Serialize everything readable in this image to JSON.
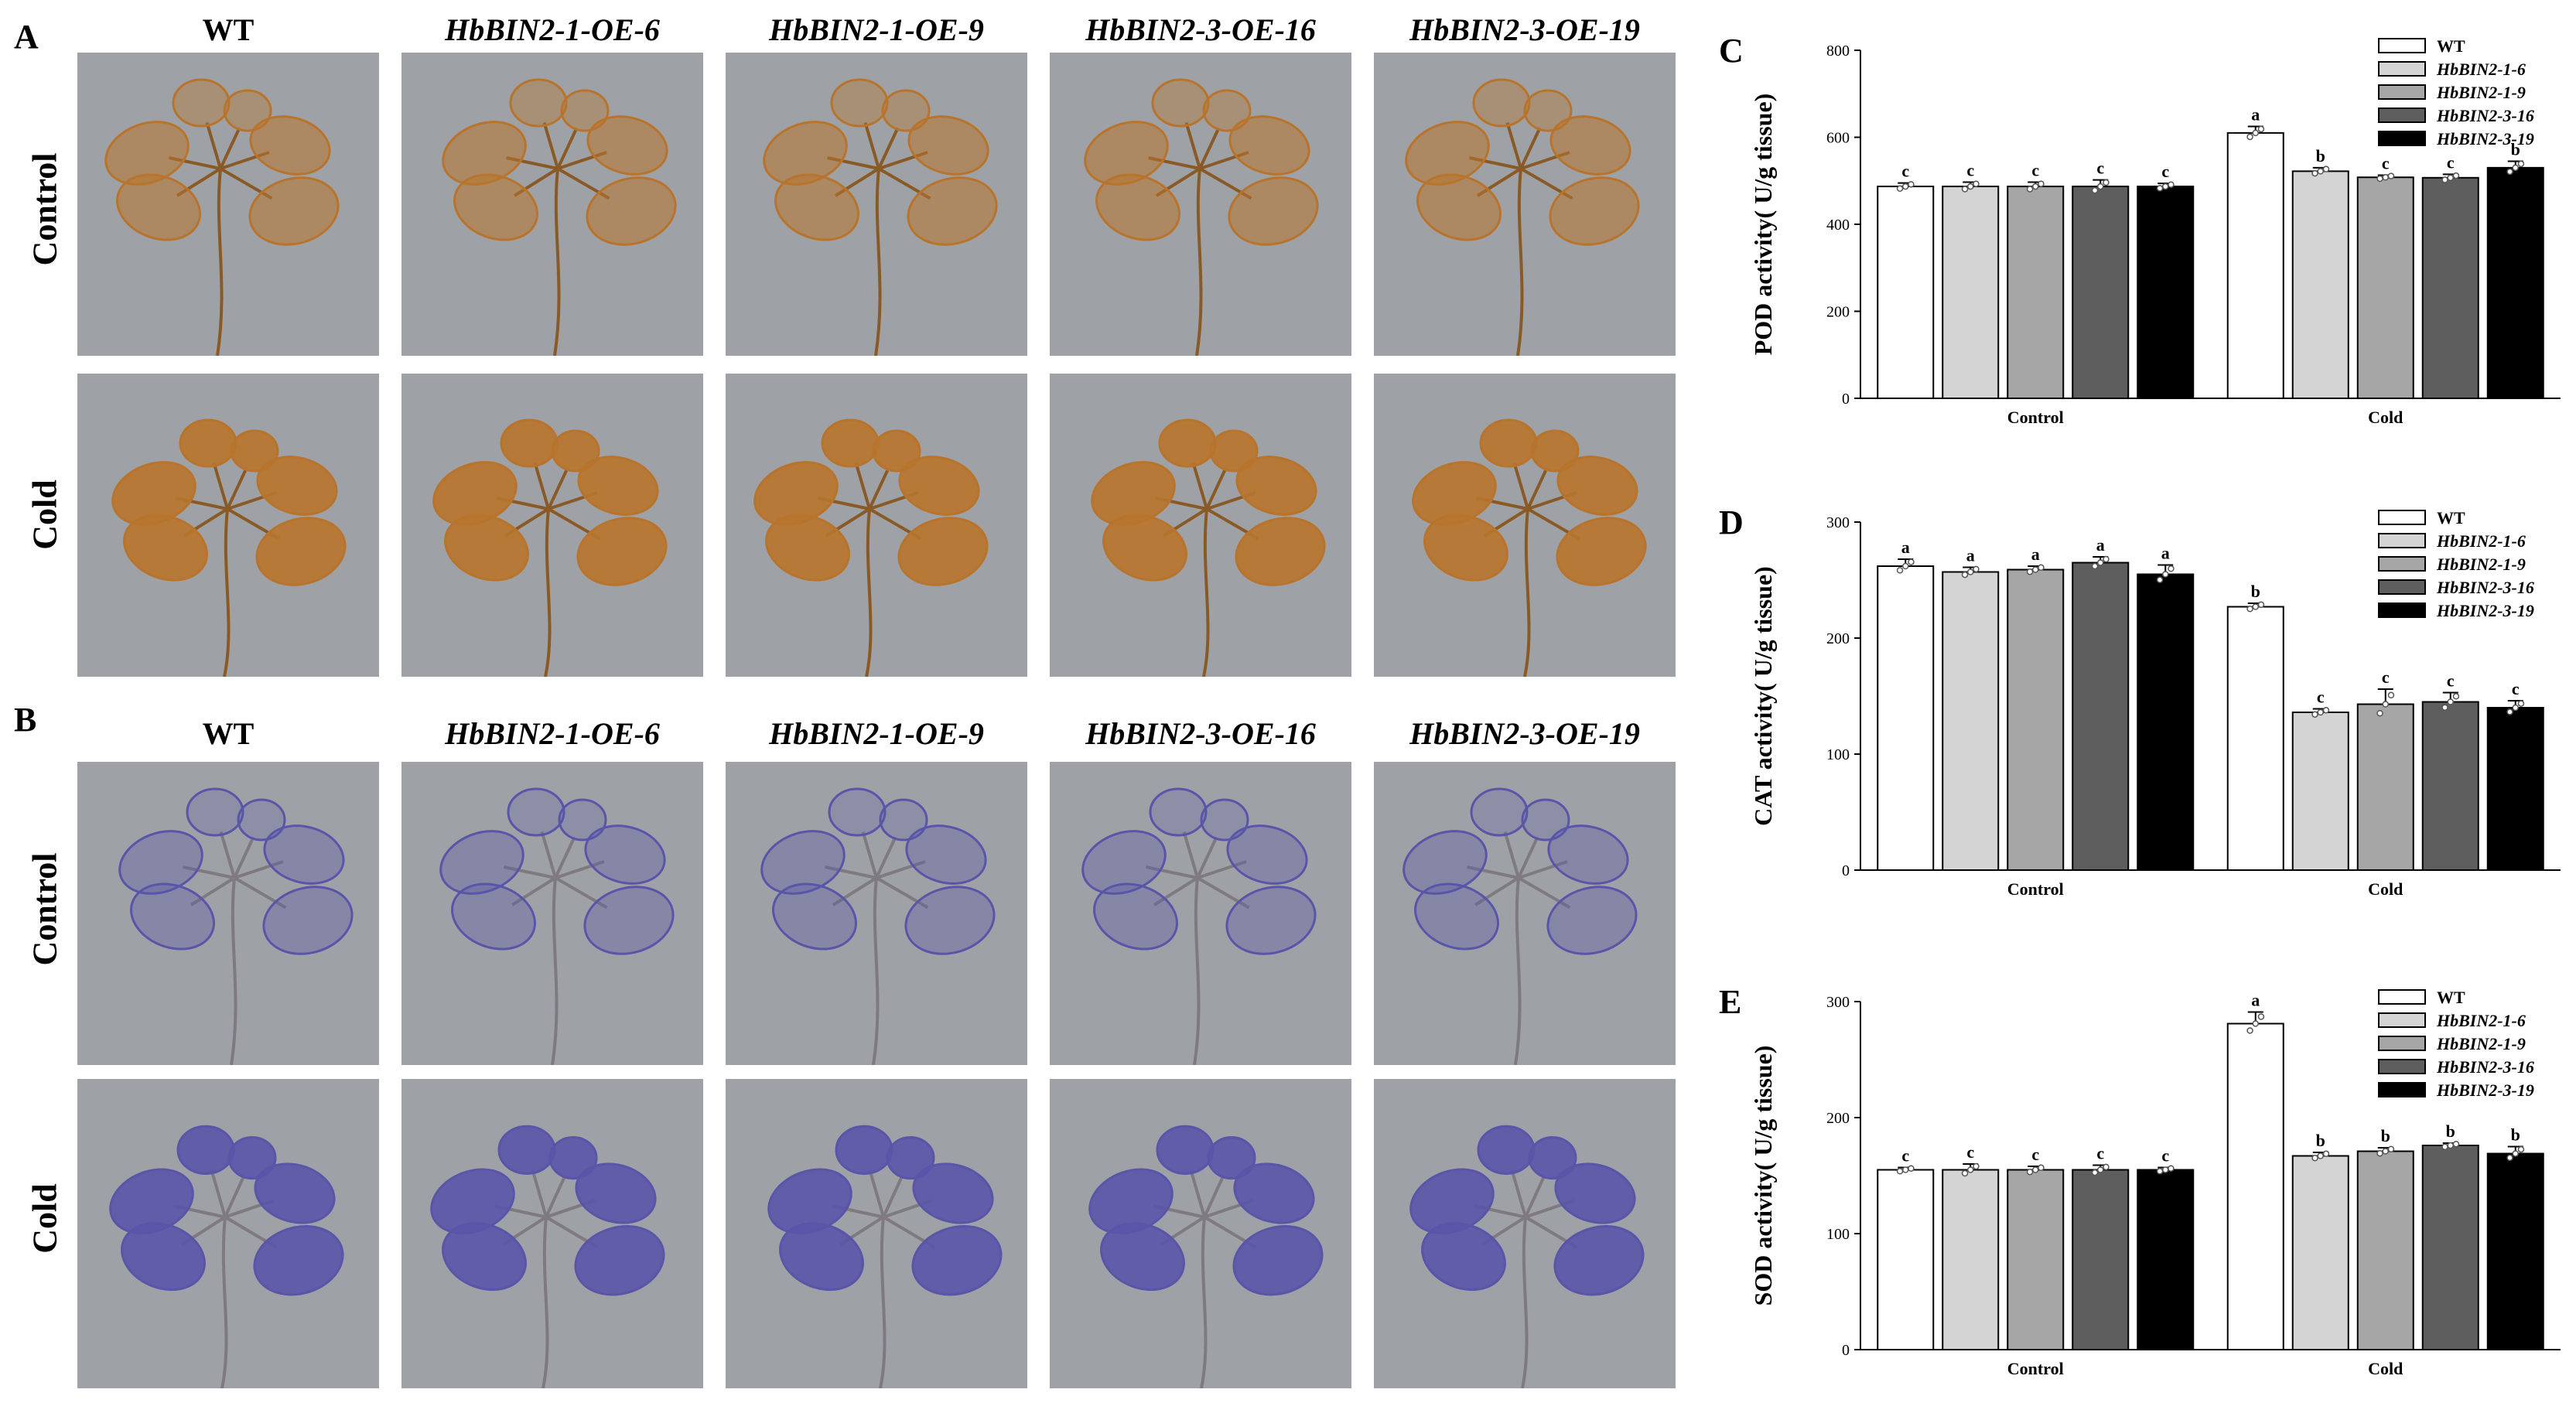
{
  "panel_labels": {
    "a": "A",
    "b": "B",
    "c": "C",
    "d": "D",
    "e": "E"
  },
  "photo_columns": [
    "WT",
    "HbBIN2-1-OE-6",
    "HbBIN2-1-OE-9",
    "HbBIN2-3-OE-16",
    "HbBIN2-3-OE-19"
  ],
  "photo_rows": [
    "Control",
    "Cold"
  ],
  "stain_colors": {
    "dab": "#b8742c",
    "nbt": "#5a55a8",
    "background": "#9ea2a6"
  },
  "chart_data": [
    {
      "type": "bar",
      "panel": "C",
      "ylabel": "POD activity( U/g tissue)",
      "ylim": [
        0,
        800
      ],
      "yticks": [
        0,
        200,
        400,
        600,
        800
      ],
      "categories": [
        "Control",
        "Cold"
      ],
      "legend_position": "top-right",
      "series": [
        {
          "name": "WT",
          "color": "#ffffff",
          "values": [
            487,
            610
          ],
          "errors": [
            8,
            15
          ],
          "letters": [
            "c",
            "a"
          ]
        },
        {
          "name": "HbBIN2-1-6",
          "color": "#d4d4d4",
          "values": [
            487,
            522
          ],
          "errors": [
            10,
            8
          ],
          "letters": [
            "c",
            "b"
          ]
        },
        {
          "name": "HbBIN2-1-9",
          "color": "#a6a6a6",
          "values": [
            487,
            508
          ],
          "errors": [
            10,
            5
          ],
          "letters": [
            "c",
            "c"
          ]
        },
        {
          "name": "HbBIN2-3-16",
          "color": "#5e5e5e",
          "values": [
            487,
            507
          ],
          "errors": [
            15,
            8
          ],
          "letters": [
            "c",
            "c"
          ]
        },
        {
          "name": "HbBIN2-3-19",
          "color": "#000000",
          "values": [
            487,
            530
          ],
          "errors": [
            7,
            15
          ],
          "letters": [
            "c",
            "b"
          ]
        }
      ]
    },
    {
      "type": "bar",
      "panel": "D",
      "ylabel": "CAT activity( U/g tissue)",
      "ylim": [
        0,
        300
      ],
      "yticks": [
        0,
        100,
        200,
        300
      ],
      "categories": [
        "Control",
        "Cold"
      ],
      "legend_position": "top-right",
      "series": [
        {
          "name": "WT",
          "color": "#ffffff",
          "values": [
            262,
            227
          ],
          "errors": [
            6,
            3
          ],
          "letters": [
            "a",
            "b"
          ]
        },
        {
          "name": "HbBIN2-1-6",
          "color": "#d4d4d4",
          "values": [
            257,
            136
          ],
          "errors": [
            4,
            3
          ],
          "letters": [
            "a",
            "c"
          ]
        },
        {
          "name": "HbBIN2-1-9",
          "color": "#a6a6a6",
          "values": [
            259,
            143
          ],
          "errors": [
            3,
            13
          ],
          "letters": [
            "a",
            "c"
          ]
        },
        {
          "name": "HbBIN2-3-16",
          "color": "#5e5e5e",
          "values": [
            265,
            145
          ],
          "errors": [
            5,
            8
          ],
          "letters": [
            "a",
            "c"
          ]
        },
        {
          "name": "HbBIN2-3-19",
          "color": "#000000",
          "values": [
            255,
            140
          ],
          "errors": [
            8,
            6
          ],
          "letters": [
            "a",
            "c"
          ]
        }
      ]
    },
    {
      "type": "bar",
      "panel": "E",
      "ylabel": "SOD activity( U/g tissue)",
      "ylim": [
        0,
        300
      ],
      "yticks": [
        0,
        100,
        200,
        300
      ],
      "categories": [
        "Control",
        "Cold"
      ],
      "legend_position": "top-right",
      "series": [
        {
          "name": "WT",
          "color": "#ffffff",
          "values": [
            155,
            281
          ],
          "errors": [
            2,
            10
          ],
          "letters": [
            "c",
            "a"
          ]
        },
        {
          "name": "HbBIN2-1-6",
          "color": "#d4d4d4",
          "values": [
            155,
            167
          ],
          "errors": [
            5,
            3
          ],
          "letters": [
            "c",
            "b"
          ]
        },
        {
          "name": "HbBIN2-1-9",
          "color": "#a6a6a6",
          "values": [
            155,
            171
          ],
          "errors": [
            3,
            3
          ],
          "letters": [
            "c",
            "b"
          ]
        },
        {
          "name": "HbBIN2-3-16",
          "color": "#5e5e5e",
          "values": [
            155,
            176
          ],
          "errors": [
            4,
            2
          ],
          "letters": [
            "c",
            "b"
          ]
        },
        {
          "name": "HbBIN2-3-19",
          "color": "#000000",
          "values": [
            155,
            169
          ],
          "errors": [
            2,
            6
          ],
          "letters": [
            "c",
            "b"
          ]
        }
      ]
    }
  ]
}
